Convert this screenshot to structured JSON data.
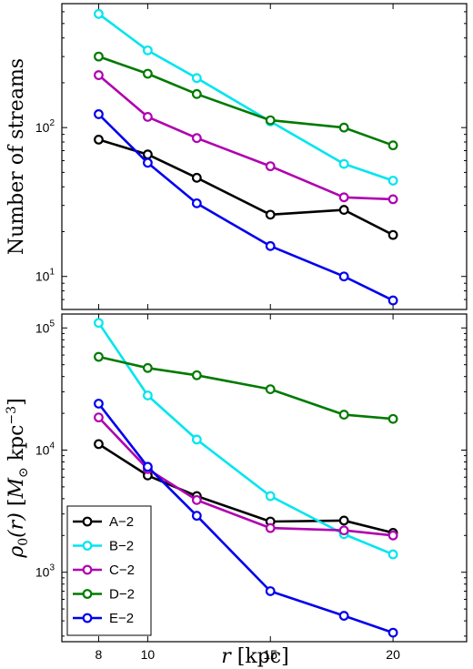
{
  "chart_data": [
    {
      "type": "line",
      "ylabel": "Number of streams",
      "xlabel": "",
      "xlim": [
        6.5,
        23
      ],
      "ylim": [
        6,
        680
      ],
      "yscale": "log",
      "x": [
        8,
        10,
        12,
        15,
        18,
        20
      ],
      "yticks": [
        {
          "value": 10,
          "base": "10",
          "exp": "1"
        },
        {
          "value": 100,
          "base": "10",
          "exp": "2"
        }
      ],
      "series": [
        {
          "name": "A−2",
          "color": "#000000",
          "values": [
            83,
            66,
            46,
            26,
            28,
            19
          ]
        },
        {
          "name": "B−2",
          "color": "#00e5ee",
          "values": [
            580,
            330,
            215,
            110,
            57,
            44
          ]
        },
        {
          "name": "C−2",
          "color": "#b000b0",
          "values": [
            225,
            118,
            85,
            55,
            34,
            33
          ]
        },
        {
          "name": "D−2",
          "color": "#007a00",
          "values": [
            300,
            230,
            168,
            112,
            100,
            76
          ]
        },
        {
          "name": "E−2",
          "color": "#0000ee",
          "values": [
            123,
            58,
            31,
            16,
            10,
            6.9
          ]
        }
      ],
      "grid": false
    },
    {
      "type": "line",
      "ylabel_parts": {
        "rho": "ρ",
        "sub": "0",
        "arg": "(r)",
        "units_open": "[",
        "m": "M",
        "sun": "⊙",
        "kpc": " kpc",
        "exp": "−3",
        "units_close": "]"
      },
      "xlabel_parts": {
        "r": "r",
        "units": "[kpc]"
      },
      "xlim": [
        6.5,
        23
      ],
      "ylim": [
        270,
        130000
      ],
      "yscale": "log",
      "x": [
        8,
        10,
        12,
        15,
        18,
        20
      ],
      "xticks": [
        8,
        10,
        15,
        20
      ],
      "yticks": [
        {
          "value": 1000,
          "base": "10",
          "exp": "3"
        },
        {
          "value": 10000,
          "base": "10",
          "exp": "4"
        },
        {
          "value": 100000,
          "base": "10",
          "exp": "5"
        }
      ],
      "series": [
        {
          "name": "A−2",
          "color": "#000000",
          "values": [
            11200,
            6200,
            4200,
            2600,
            2650,
            2100
          ]
        },
        {
          "name": "B−2",
          "color": "#00e5ee",
          "values": [
            110000,
            28000,
            12200,
            4200,
            2050,
            1400
          ]
        },
        {
          "name": "C−2",
          "color": "#b000b0",
          "values": [
            18500,
            7000,
            3900,
            2300,
            2200,
            2000
          ]
        },
        {
          "name": "D−2",
          "color": "#007a00",
          "values": [
            58000,
            47000,
            41000,
            31500,
            19500,
            18000
          ]
        },
        {
          "name": "E−2",
          "color": "#0000ee",
          "values": [
            24000,
            7300,
            2900,
            700,
            440,
            320
          ]
        }
      ],
      "legend": "bottom-left",
      "grid": false
    }
  ]
}
